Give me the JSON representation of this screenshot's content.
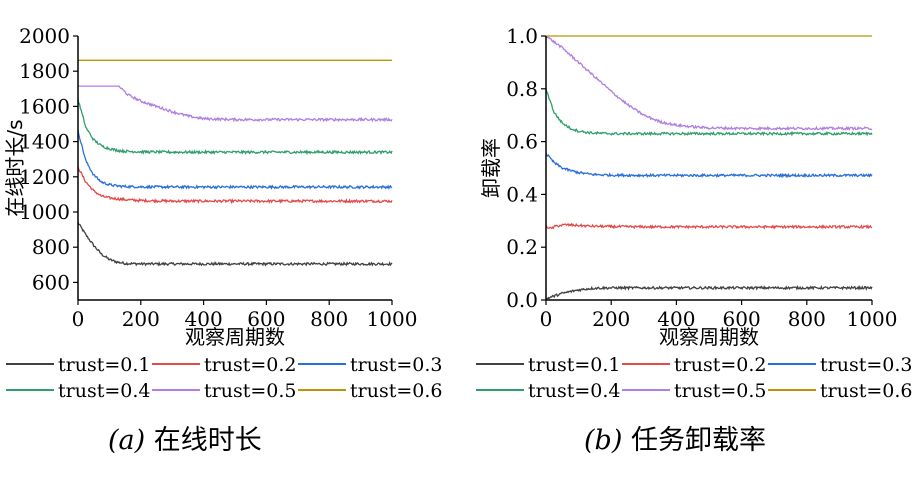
{
  "chart_data": [
    {
      "type": "line",
      "panel_label": "(a)",
      "caption": "在线时长",
      "xlabel": "观察周期数",
      "ylabel": "在线时长/s",
      "xlim": [
        0,
        1000
      ],
      "ylim": [
        500,
        2000
      ],
      "xticks": [
        0,
        200,
        400,
        600,
        800,
        1000
      ],
      "yticks": [
        600,
        800,
        1000,
        1200,
        1400,
        1600,
        1800,
        2000
      ],
      "grid": false,
      "legend_position": "bottom",
      "series": [
        {
          "name": "trust=0.1",
          "color": "#404040",
          "x": [
            0,
            25,
            50,
            75,
            100,
            125,
            150,
            200,
            300,
            400,
            500,
            600,
            700,
            800,
            900,
            1000
          ],
          "values": [
            940,
            870,
            810,
            760,
            730,
            715,
            708,
            705,
            705,
            705,
            705,
            705,
            705,
            705,
            705,
            705
          ]
        },
        {
          "name": "trust=0.2",
          "color": "#e34a4a",
          "x": [
            0,
            25,
            50,
            75,
            100,
            125,
            150,
            200,
            300,
            400,
            500,
            600,
            700,
            800,
            900,
            1000
          ],
          "values": [
            1255,
            1170,
            1120,
            1090,
            1080,
            1075,
            1070,
            1065,
            1062,
            1062,
            1062,
            1062,
            1062,
            1062,
            1062,
            1062
          ]
        },
        {
          "name": "trust=0.3",
          "color": "#2b6fd6",
          "x": [
            0,
            25,
            50,
            75,
            100,
            125,
            150,
            200,
            300,
            400,
            500,
            600,
            700,
            800,
            900,
            1000
          ],
          "values": [
            1460,
            1290,
            1210,
            1170,
            1155,
            1148,
            1145,
            1143,
            1142,
            1142,
            1142,
            1142,
            1142,
            1142,
            1142,
            1142
          ]
        },
        {
          "name": "trust=0.4",
          "color": "#2e9e6a",
          "x": [
            0,
            25,
            50,
            75,
            100,
            125,
            150,
            200,
            300,
            400,
            500,
            600,
            700,
            800,
            900,
            1000
          ],
          "values": [
            1640,
            1480,
            1410,
            1375,
            1360,
            1350,
            1345,
            1342,
            1340,
            1340,
            1340,
            1340,
            1340,
            1340,
            1340,
            1340
          ]
        },
        {
          "name": "trust=0.5",
          "color": "#b07fe0",
          "x": [
            0,
            50,
            100,
            130,
            160,
            200,
            250,
            300,
            350,
            400,
            500,
            600,
            700,
            800,
            900,
            1000
          ],
          "values": [
            1715,
            1715,
            1715,
            1715,
            1665,
            1630,
            1600,
            1570,
            1545,
            1530,
            1525,
            1525,
            1525,
            1525,
            1525,
            1525
          ]
        },
        {
          "name": "trust=0.6",
          "color": "#b8960a",
          "x": [
            0,
            1000
          ],
          "values": [
            1862,
            1862
          ]
        }
      ]
    },
    {
      "type": "line",
      "panel_label": "(b)",
      "caption": "任务卸载率",
      "xlabel": "观察周期数",
      "ylabel": "卸载率",
      "xlim": [
        0,
        1000
      ],
      "ylim": [
        0,
        1.0
      ],
      "xticks": [
        0,
        200,
        400,
        600,
        800,
        1000
      ],
      "yticks": [
        0.0,
        0.2,
        0.4,
        0.6,
        0.8,
        1.0
      ],
      "grid": false,
      "legend_position": "bottom",
      "series": [
        {
          "name": "trust=0.1",
          "color": "#404040",
          "x": [
            0,
            25,
            50,
            75,
            100,
            125,
            150,
            200,
            300,
            400,
            500,
            600,
            700,
            800,
            900,
            1000
          ],
          "values": [
            0.005,
            0.015,
            0.025,
            0.032,
            0.038,
            0.042,
            0.045,
            0.046,
            0.046,
            0.046,
            0.046,
            0.046,
            0.046,
            0.046,
            0.046,
            0.046
          ]
        },
        {
          "name": "trust=0.2",
          "color": "#e34a4a",
          "x": [
            0,
            15,
            30,
            60,
            90,
            130,
            200,
            300,
            400,
            500,
            600,
            700,
            800,
            900,
            1000
          ],
          "values": [
            0.28,
            0.27,
            0.28,
            0.285,
            0.283,
            0.28,
            0.278,
            0.277,
            0.277,
            0.277,
            0.277,
            0.277,
            0.277,
            0.277,
            0.277
          ]
        },
        {
          "name": "trust=0.3",
          "color": "#2b6fd6",
          "x": [
            0,
            25,
            50,
            75,
            100,
            125,
            150,
            200,
            300,
            400,
            500,
            600,
            700,
            800,
            900,
            1000
          ],
          "values": [
            0.555,
            0.52,
            0.5,
            0.49,
            0.483,
            0.478,
            0.475,
            0.473,
            0.472,
            0.472,
            0.472,
            0.472,
            0.472,
            0.472,
            0.472,
            0.472
          ]
        },
        {
          "name": "trust=0.4",
          "color": "#2e9e6a",
          "x": [
            0,
            25,
            50,
            75,
            100,
            125,
            150,
            200,
            300,
            400,
            500,
            600,
            700,
            800,
            900,
            1000
          ],
          "values": [
            0.8,
            0.71,
            0.67,
            0.65,
            0.64,
            0.635,
            0.632,
            0.63,
            0.63,
            0.63,
            0.63,
            0.63,
            0.63,
            0.63,
            0.63,
            0.63
          ]
        },
        {
          "name": "trust=0.5",
          "color": "#b07fe0",
          "x": [
            0,
            50,
            100,
            150,
            200,
            250,
            300,
            350,
            400,
            450,
            500,
            600,
            700,
            800,
            900,
            1000
          ],
          "values": [
            1.0,
            0.955,
            0.9,
            0.845,
            0.79,
            0.74,
            0.7,
            0.675,
            0.662,
            0.656,
            0.652,
            0.65,
            0.65,
            0.65,
            0.65,
            0.65
          ]
        },
        {
          "name": "trust=0.6",
          "color": "#b8960a",
          "x": [
            0,
            1000
          ],
          "values": [
            1.0,
            1.0
          ]
        }
      ]
    }
  ]
}
